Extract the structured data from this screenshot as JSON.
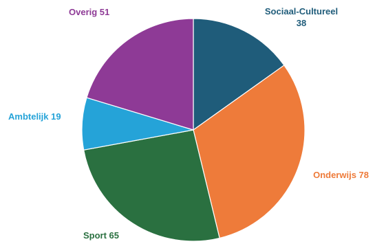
{
  "chart_data": {
    "type": "pie",
    "categories": [
      "Sociaal-Cultureel",
      "Onderwijs",
      "Sport",
      "Ambtelijk",
      "Overig"
    ],
    "values": [
      38,
      78,
      65,
      19,
      51
    ],
    "colors": [
      "#1f5c7a",
      "#ee7b3a",
      "#2a7040",
      "#25a3d8",
      "#8e3a96"
    ],
    "labels": [
      {
        "name": "Sociaal-Cultureel",
        "lines": [
          "Sociaal-Cultureel",
          "38"
        ],
        "color": "#1f5c7a"
      },
      {
        "name": "Onderwijs",
        "lines": [
          "Onderwijs 78"
        ],
        "color": "#ee7b3a"
      },
      {
        "name": "Sport",
        "lines": [
          "Sport 65"
        ],
        "color": "#2a7040"
      },
      {
        "name": "Ambtelijk",
        "lines": [
          "Ambtelijk 19"
        ],
        "color": "#25a3d8"
      },
      {
        "name": "Overig",
        "lines": [
          "Overig  51"
        ],
        "color": "#8e3a96"
      }
    ],
    "start": "12 o'clock",
    "direction": "clockwise",
    "legend": "none"
  }
}
